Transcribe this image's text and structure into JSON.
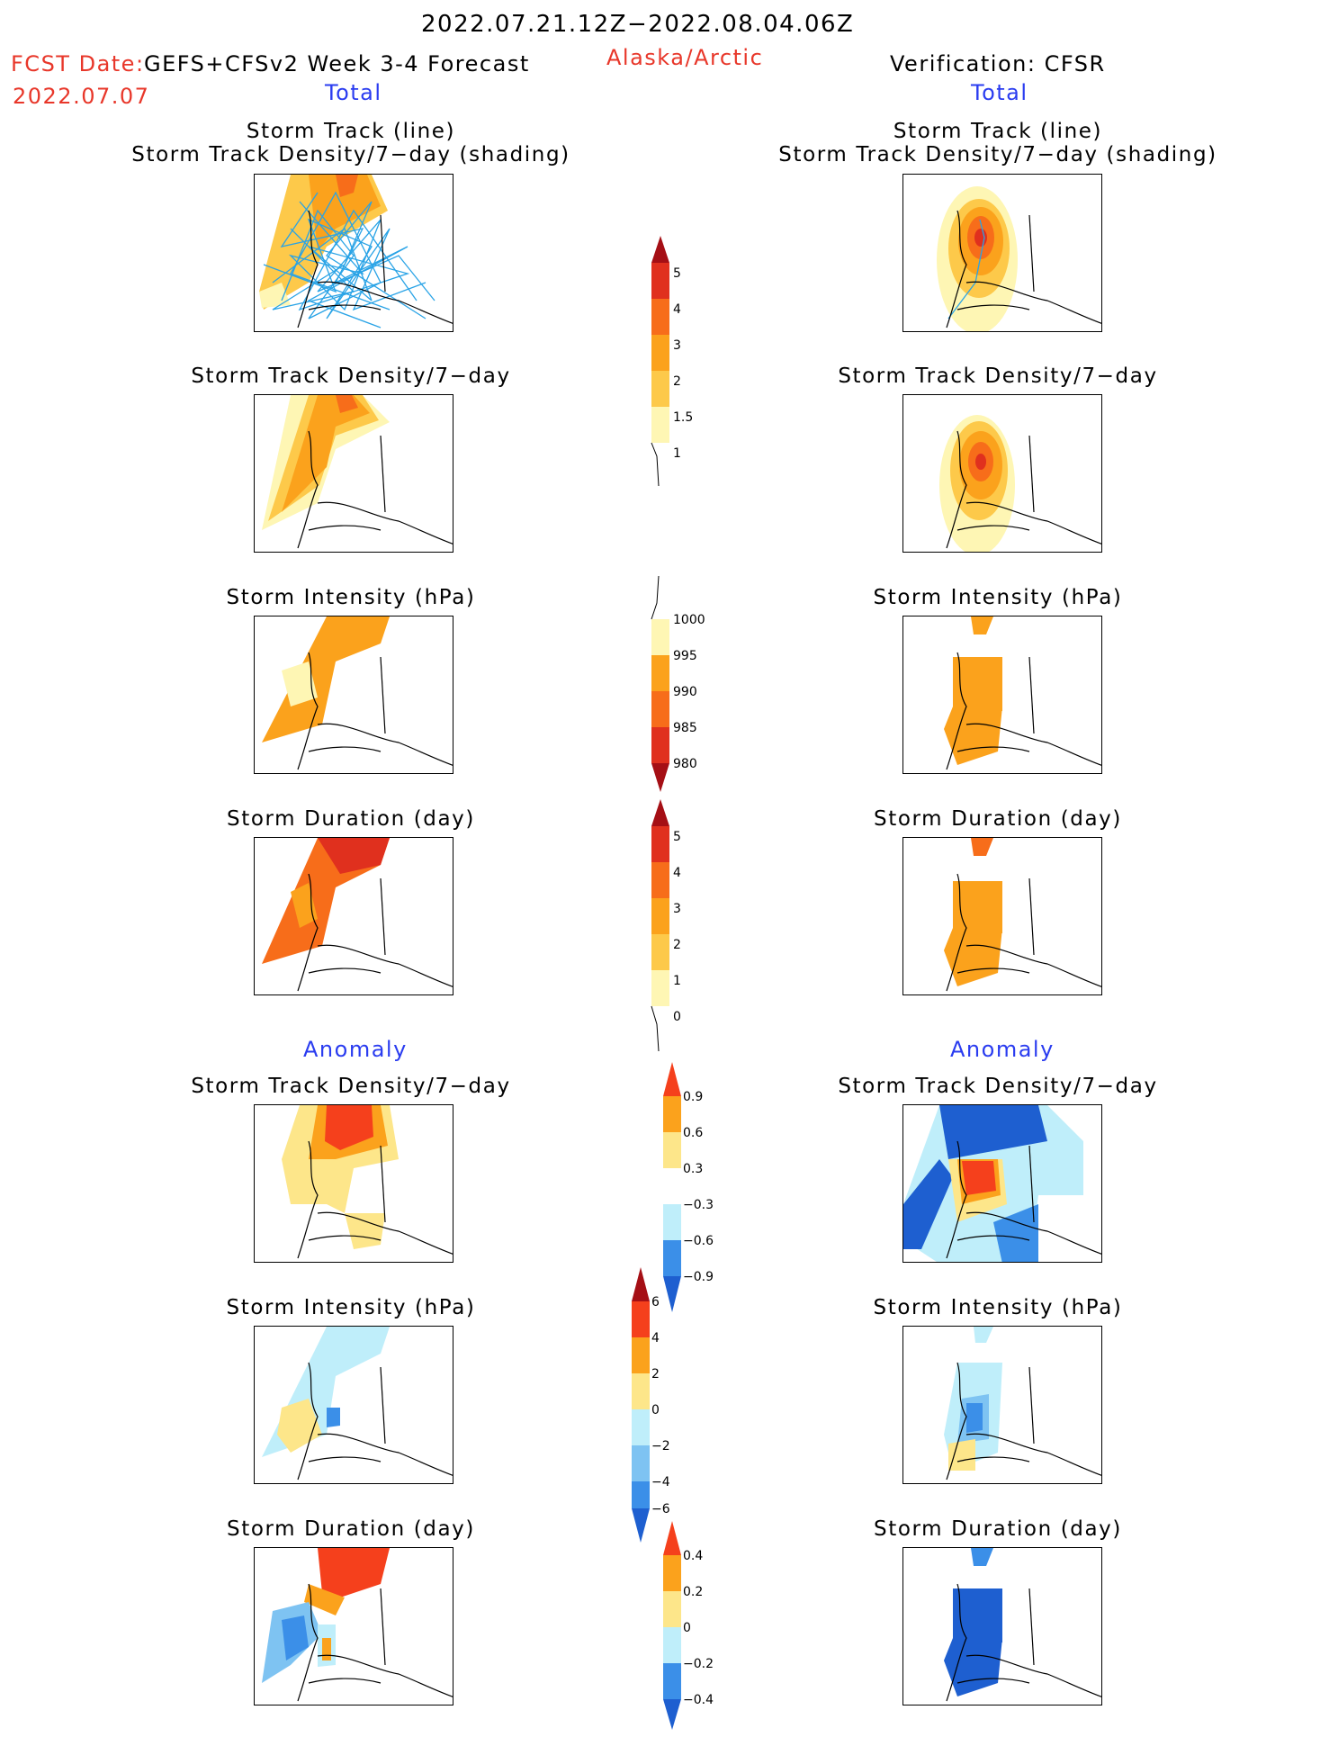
{
  "header": {
    "period": "2022.07.21.12Z−2022.08.04.06Z",
    "fcst_date_label": "FCST Date:",
    "fcst_date_value": "2022.07.07",
    "model": "GEFS+CFSv2 Week 3-4 Forecast",
    "region": "Alaska/Arctic",
    "verification": "Verification: CFSR"
  },
  "sections": {
    "total_label": "Total",
    "anomaly_label": "Anomaly"
  },
  "panel_titles": {
    "storm_track_line": "Storm Track (line)",
    "storm_track_shading": "Storm Track Density/7−day (shading)",
    "track_density": "Storm Track Density/7−day",
    "intensity": "Storm Intensity (hPa)",
    "duration": "Storm Duration (day)"
  },
  "colorbars": {
    "density_total": {
      "labels": [
        "5",
        "4",
        "3",
        "2",
        "1.5",
        "1"
      ],
      "colors": [
        "#a50f15",
        "#e0301e",
        "#f76d1a",
        "#fba21c",
        "#fdc94a",
        "#fef6b4"
      ]
    },
    "intensity_total": {
      "labels": [
        "1000",
        "995",
        "990",
        "985",
        "980"
      ],
      "colors": [
        "#fef6b4",
        "#fba21c",
        "#f76d1a",
        "#e0301e",
        "#a50f15"
      ]
    },
    "duration_total": {
      "labels": [
        "5",
        "4",
        "3",
        "2",
        "1",
        "0"
      ],
      "colors": [
        "#a50f15",
        "#e0301e",
        "#f76d1a",
        "#fba21c",
        "#fdc94a",
        "#fef6b4"
      ]
    },
    "density_anom": {
      "labels": [
        "0.9",
        "0.6",
        "0.3",
        "−0.3",
        "−0.6",
        "−0.9"
      ],
      "colors": [
        "#f5401c",
        "#fba21c",
        "#fde68a",
        "#ffffff",
        "#bfeefa",
        "#7ec3f2",
        "#3b8fe8",
        "#1e5fd0"
      ]
    },
    "intensity_anom": {
      "labels": [
        "6",
        "4",
        "2",
        "0",
        "−2",
        "−4",
        "−6"
      ],
      "colors": [
        "#a50f15",
        "#f5401c",
        "#fba21c",
        "#fde68a",
        "#bfeefa",
        "#7ec3f2",
        "#3b8fe8",
        "#1e5fd0"
      ]
    },
    "duration_anom": {
      "labels": [
        "0.4",
        "0.2",
        "0",
        "−0.2",
        "−0.4"
      ],
      "colors": [
        "#f5401c",
        "#fba21c",
        "#fde68a",
        "#bfeefa",
        "#7ec3f2",
        "#3b8fe8",
        "#1e5fd0"
      ]
    }
  },
  "colors": {
    "header_red": "#e8372a",
    "header_blue": "#2a3cf0",
    "track_line": "#29a3e6"
  }
}
